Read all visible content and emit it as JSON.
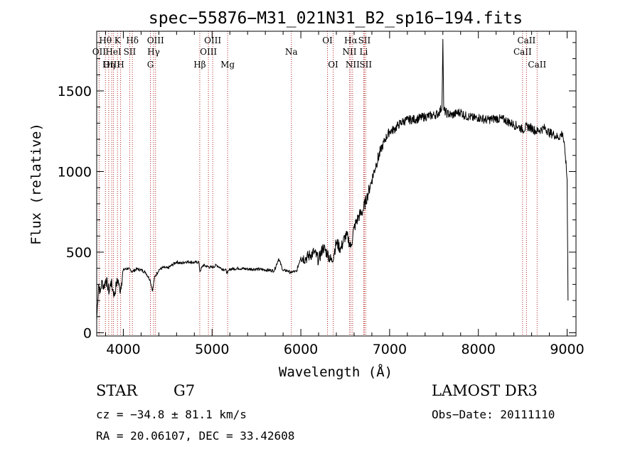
{
  "chart_data": {
    "type": "line",
    "title": "spec−55876−M31_021N31_B2_sp16−194.fits",
    "xlabel": "Wavelength (Å)",
    "ylabel": "Flux (relative)",
    "xlim": [
      3700,
      9100
    ],
    "ylim": [
      -20,
      1870
    ],
    "x_ticks": [
      4000,
      5000,
      6000,
      7000,
      8000,
      9000
    ],
    "y_ticks": [
      0,
      500,
      1000,
      1500
    ],
    "x_tick_labels": [
      "4000",
      "5000",
      "6000",
      "7000",
      "8000",
      "9000"
    ],
    "y_tick_labels": [
      "0",
      "500",
      "1000",
      "1500"
    ],
    "series": [
      {
        "name": "flux",
        "x": [
          3700,
          3720,
          3740,
          3760,
          3780,
          3800,
          3820,
          3840,
          3860,
          3880,
          3900,
          3920,
          3940,
          3960,
          3980,
          4000,
          4050,
          4100,
          4150,
          4200,
          4250,
          4300,
          4330,
          4350,
          4400,
          4450,
          4500,
          4550,
          4600,
          4650,
          4700,
          4750,
          4800,
          4850,
          4862,
          4900,
          4950,
          5000,
          5050,
          5100,
          5150,
          5175,
          5200,
          5300,
          5400,
          5500,
          5600,
          5700,
          5750,
          5800,
          5850,
          5893,
          5900,
          5950,
          6000,
          6050,
          6100,
          6150,
          6200,
          6250,
          6300,
          6350,
          6400,
          6450,
          6500,
          6530,
          6563,
          6600,
          6650,
          6700,
          6750,
          6800,
          6850,
          6900,
          6950,
          7000,
          7050,
          7100,
          7150,
          7200,
          7300,
          7400,
          7500,
          7550,
          7590,
          7600,
          7610,
          7650,
          7700,
          7750,
          7800,
          7850,
          7900,
          7950,
          8000,
          8100,
          8200,
          8300,
          8400,
          8450,
          8500,
          8550,
          8600,
          8650,
          8700,
          8750,
          8800,
          8850,
          8900,
          8950,
          8980,
          9000,
          9010
        ],
        "y": [
          80,
          300,
          250,
          320,
          280,
          330,
          300,
          250,
          320,
          270,
          230,
          300,
          330,
          260,
          310,
          390,
          400,
          380,
          395,
          390,
          375,
          330,
          260,
          340,
          390,
          405,
          400,
          420,
          440,
          430,
          440,
          440,
          435,
          440,
          380,
          420,
          410,
          405,
          420,
          400,
          390,
          370,
          395,
          400,
          395,
          395,
          390,
          385,
          460,
          385,
          385,
          370,
          380,
          378,
          470,
          460,
          480,
          500,
          450,
          530,
          490,
          440,
          560,
          520,
          600,
          590,
          530,
          650,
          720,
          760,
          850,
          950,
          1050,
          1130,
          1200,
          1250,
          1260,
          1290,
          1310,
          1320,
          1325,
          1340,
          1350,
          1360,
          1400,
          1820,
          1380,
          1360,
          1350,
          1360,
          1370,
          1345,
          1340,
          1330,
          1335,
          1320,
          1330,
          1320,
          1290,
          1280,
          1260,
          1280,
          1270,
          1250,
          1260,
          1270,
          1240,
          1230,
          1210,
          1240,
          1100,
          950,
          200
        ]
      }
    ],
    "line_markers": [
      {
        "label": "Hθ",
        "x": 3798,
        "row": 1
      },
      {
        "label": "OII",
        "x": 3727,
        "row": 2
      },
      {
        "label": "OIII",
        "x": 3869,
        "row": 3
      },
      {
        "label": "K",
        "x": 3934,
        "row": 1
      },
      {
        "label": "Hη",
        "x": 3835,
        "row": 3
      },
      {
        "label": "HeI",
        "x": 3889,
        "row": 2
      },
      {
        "label": "H",
        "x": 3969,
        "row": 3
      },
      {
        "label": "SII",
        "x": 4072,
        "row": 2
      },
      {
        "label": "Hδ",
        "x": 4102,
        "row": 1
      },
      {
        "label": "G",
        "x": 4305,
        "row": 3
      },
      {
        "label": "OIII",
        "x": 4363,
        "row": 1
      },
      {
        "label": "Hγ",
        "x": 4341,
        "row": 2
      },
      {
        "label": "Hβ",
        "x": 4861,
        "row": 3
      },
      {
        "label": "OIII",
        "x": 4959,
        "row": 2
      },
      {
        "label": "OIII",
        "x": 5007,
        "row": 1
      },
      {
        "label": "Mg",
        "x": 5175,
        "row": 3
      },
      {
        "label": "Na",
        "x": 5893,
        "row": 2
      },
      {
        "label": "OI",
        "x": 6300,
        "row": 1
      },
      {
        "label": "OI",
        "x": 6364,
        "row": 3
      },
      {
        "label": "NII",
        "x": 6548,
        "row": 2
      },
      {
        "label": "Hα",
        "x": 6563,
        "row": 1
      },
      {
        "label": "NII",
        "x": 6583,
        "row": 3
      },
      {
        "label": "SII",
        "x": 6716,
        "row": 1
      },
      {
        "label": "Li",
        "x": 6708,
        "row": 2
      },
      {
        "label": "SII",
        "x": 6731,
        "row": 3
      },
      {
        "label": "CaII",
        "x": 8498,
        "row": 2
      },
      {
        "label": "CaII",
        "x": 8542,
        "row": 1
      },
      {
        "label": "CaII",
        "x": 8662,
        "row": 3
      }
    ]
  },
  "info": {
    "class": "STAR",
    "subclass": "G7",
    "survey": "LAMOST DR3",
    "cz": "cz = −34.8 ± 81.1 km/s",
    "obs_date": "Obs−Date: 20111110",
    "coords": "RA =  20.06107, DEC =  33.42608"
  },
  "colors": {
    "spectrum": "#000000",
    "marker_line": "#b22222",
    "axes": "#000000",
    "background": "#ffffff"
  }
}
